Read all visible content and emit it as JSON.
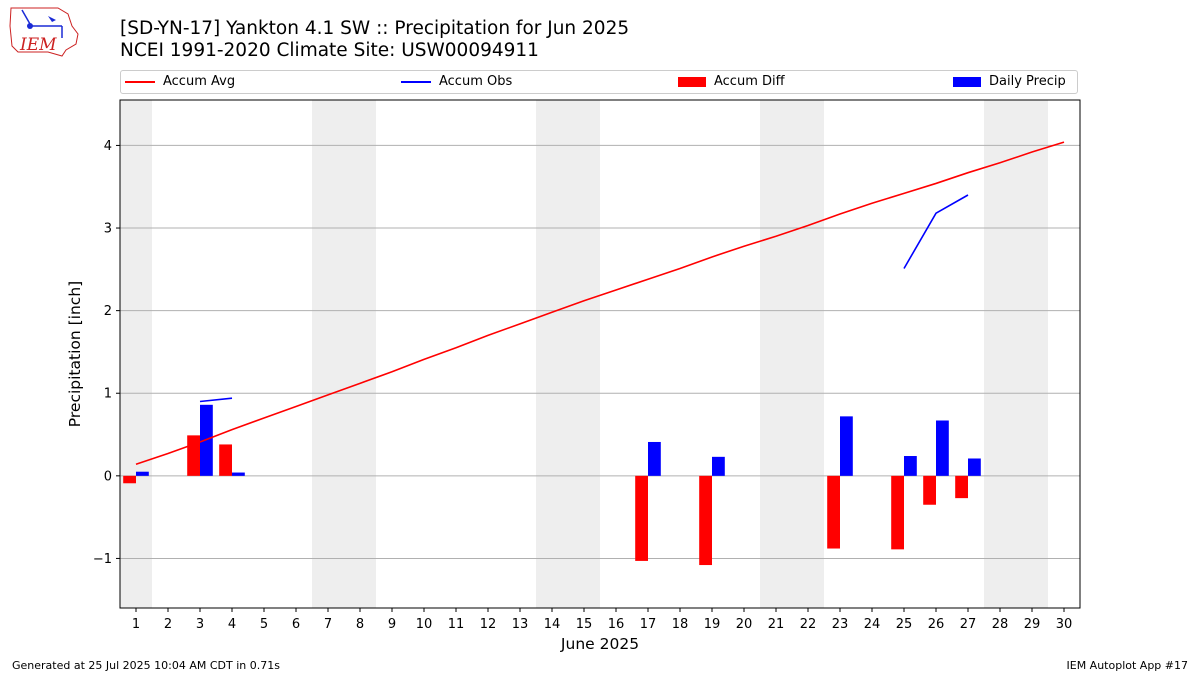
{
  "header": {
    "title_line1": "[SD-YN-17] Yankton 4.1 SW :: Precipitation for Jun 2025",
    "title_line2": "NCEI 1991-2020 Climate Site: USW00094911"
  },
  "logo": {
    "text": "IEM",
    "color": "#cc2222",
    "accent": "#1a2bd6"
  },
  "legend": {
    "accum_avg": "Accum Avg",
    "accum_obs": "Accum Obs",
    "accum_diff": "Accum Diff",
    "daily_precip": "Daily Precip"
  },
  "footer": {
    "generated": "Generated at 25 Jul 2025 10:04 AM CDT in 0.71s",
    "app": "IEM Autoplot App #17"
  },
  "chart_data": {
    "type": "bar",
    "xlabel": "June 2025",
    "ylabel": "Precipitation [inch]",
    "xlim": [
      0.5,
      30.5
    ],
    "ylim": [
      -1.6,
      4.55
    ],
    "yticks": [
      -1,
      0,
      1,
      2,
      3,
      4
    ],
    "ytick_labels": [
      "−1",
      "0",
      "1",
      "2",
      "3",
      "4"
    ],
    "days": [
      1,
      2,
      3,
      4,
      5,
      6,
      7,
      8,
      9,
      10,
      11,
      12,
      13,
      14,
      15,
      16,
      17,
      18,
      19,
      20,
      21,
      22,
      23,
      24,
      25,
      26,
      27,
      28,
      29,
      30
    ],
    "weekend_days": [
      1,
      7,
      8,
      14,
      15,
      21,
      22,
      28,
      29
    ],
    "grid": "horizontal",
    "colors": {
      "accum_avg": "#ff0000",
      "accum_obs": "#0000ff",
      "accum_diff": "#ff0000",
      "daily_precip": "#0000ff",
      "weekend_shade": "#eeeeee",
      "grid": "#b0b0b0"
    },
    "series": [
      {
        "name": "Accum Avg",
        "type": "line",
        "x": [
          1,
          2,
          3,
          4,
          5,
          6,
          7,
          8,
          9,
          10,
          11,
          12,
          13,
          14,
          15,
          16,
          17,
          18,
          19,
          20,
          21,
          22,
          23,
          24,
          25,
          26,
          27,
          28,
          29,
          30
        ],
        "values": [
          0.14,
          0.27,
          0.41,
          0.56,
          0.7,
          0.84,
          0.98,
          1.12,
          1.26,
          1.41,
          1.55,
          1.7,
          1.84,
          1.98,
          2.12,
          2.25,
          2.38,
          2.51,
          2.65,
          2.78,
          2.9,
          3.03,
          3.17,
          3.3,
          3.42,
          3.54,
          3.67,
          3.79,
          3.92,
          4.04
        ]
      },
      {
        "name": "Accum Obs",
        "type": "line",
        "segments": [
          {
            "x": [
              3,
              4
            ],
            "values": [
              0.9,
              0.94
            ]
          },
          {
            "x": [
              25,
              26,
              27
            ],
            "values": [
              2.51,
              3.18,
              3.4
            ]
          }
        ]
      },
      {
        "name": "Accum Diff",
        "type": "bar",
        "x": [
          1,
          3,
          4,
          17,
          19,
          23,
          25,
          26,
          27
        ],
        "values": [
          -0.09,
          0.49,
          0.38,
          -1.03,
          -1.08,
          -0.88,
          -0.89,
          -0.35,
          -0.27
        ]
      },
      {
        "name": "Daily Precip",
        "type": "bar",
        "x": [
          1,
          3,
          4,
          17,
          19,
          23,
          25,
          26,
          27
        ],
        "values": [
          0.05,
          0.86,
          0.04,
          0.41,
          0.23,
          0.72,
          0.24,
          0.67,
          0.21
        ]
      }
    ]
  }
}
